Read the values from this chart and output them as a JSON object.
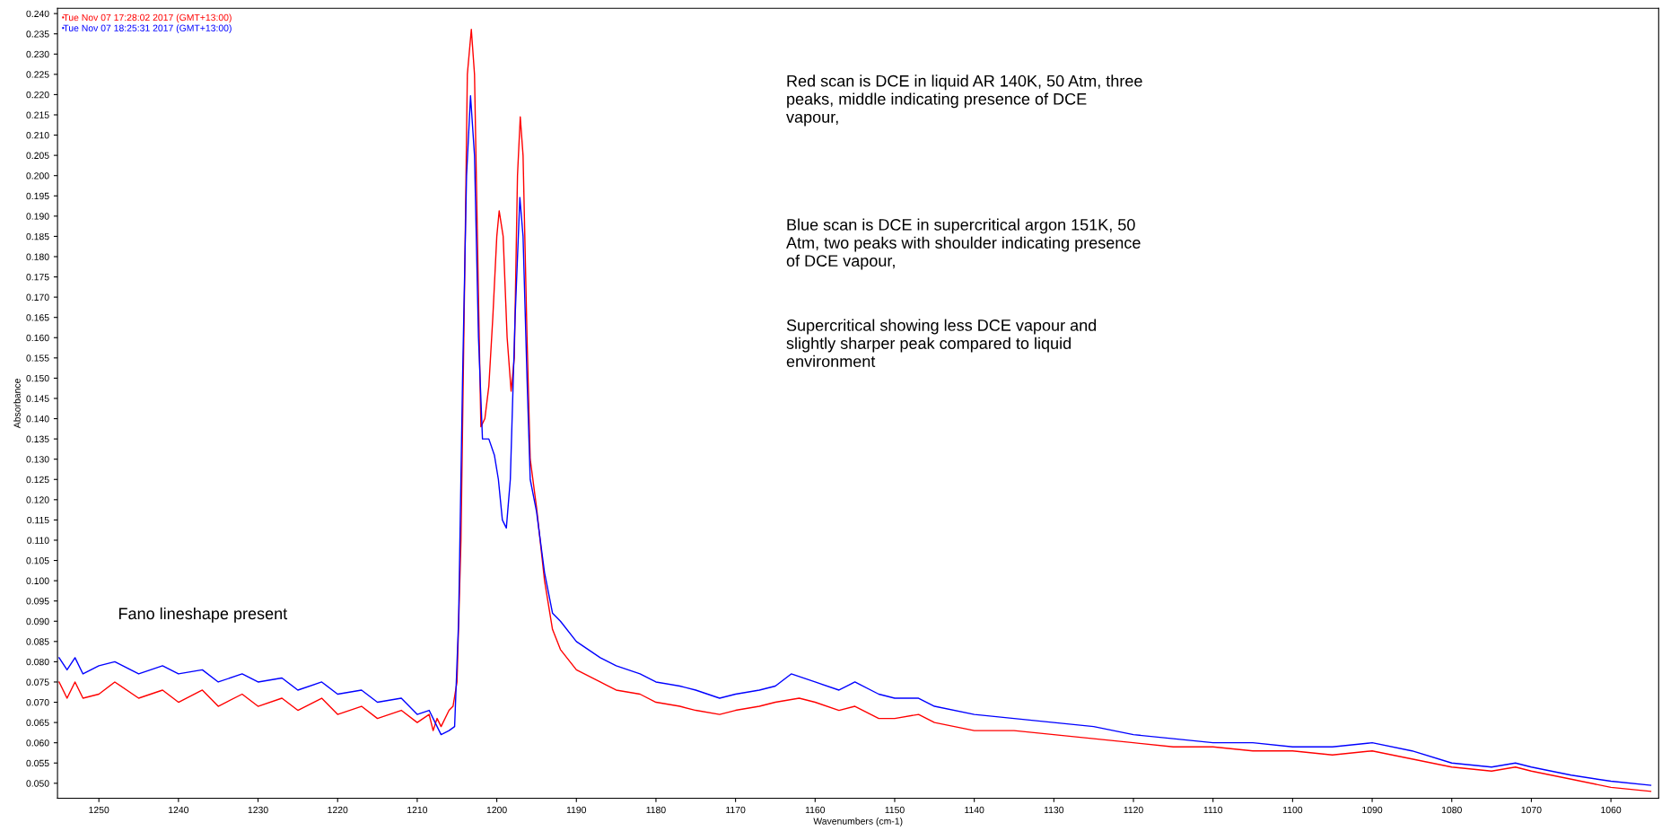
{
  "chart_data": {
    "type": "line",
    "xlabel": "Wavenumbers (cm-1)",
    "ylabel": "Absorbance",
    "xlim": [
      1255.2,
      1054
    ],
    "ylim": [
      0.0463,
      0.2413
    ],
    "xticks": [
      1250,
      1240,
      1230,
      1220,
      1210,
      1200,
      1190,
      1180,
      1170,
      1160,
      1150,
      1140,
      1130,
      1120,
      1110,
      1100,
      1090,
      1080,
      1070,
      1060
    ],
    "yticks": [
      {
        "value": 0.05,
        "label": "0.050"
      },
      {
        "value": 0.055,
        "label": "0.055"
      },
      {
        "value": 0.06,
        "label": "0.060"
      },
      {
        "value": 0.065,
        "label": "0.065"
      },
      {
        "value": 0.07,
        "label": "0.070"
      },
      {
        "value": 0.075,
        "label": "0.075"
      },
      {
        "value": 0.08,
        "label": "0.080"
      },
      {
        "value": 0.085,
        "label": "0.085"
      },
      {
        "value": 0.09,
        "label": "0.090"
      },
      {
        "value": 0.095,
        "label": "0.095"
      },
      {
        "value": 0.1,
        "label": "0.100"
      },
      {
        "value": 0.105,
        "label": "0.105"
      },
      {
        "value": 0.11,
        "label": "0.110"
      },
      {
        "value": 0.115,
        "label": "0.115"
      },
      {
        "value": 0.12,
        "label": "0.120"
      },
      {
        "value": 0.125,
        "label": "0.125"
      },
      {
        "value": 0.13,
        "label": "0.130"
      },
      {
        "value": 0.135,
        "label": "0.135"
      },
      {
        "value": 0.14,
        "label": "0.140"
      },
      {
        "value": 0.145,
        "label": "0.145"
      },
      {
        "value": 0.15,
        "label": "0.150"
      },
      {
        "value": 0.155,
        "label": "0.155"
      },
      {
        "value": 0.16,
        "label": "0.160"
      },
      {
        "value": 0.165,
        "label": "0.165"
      },
      {
        "value": 0.17,
        "label": "0.170"
      },
      {
        "value": 0.175,
        "label": "0.175"
      },
      {
        "value": 0.18,
        "label": "0.180"
      },
      {
        "value": 0.185,
        "label": "0.185"
      },
      {
        "value": 0.19,
        "label": "0.190"
      },
      {
        "value": 0.195,
        "label": "0.195"
      },
      {
        "value": 0.2,
        "label": "0.200"
      },
      {
        "value": 0.205,
        "label": "0.205"
      },
      {
        "value": 0.21,
        "label": "0.210"
      },
      {
        "value": 0.215,
        "label": "0.215"
      },
      {
        "value": 0.22,
        "label": "0.220"
      },
      {
        "value": 0.225,
        "label": "0.225"
      },
      {
        "value": 0.23,
        "label": "0.230"
      },
      {
        "value": 0.235,
        "label": "0.235"
      },
      {
        "value": 0.24,
        "label": "0.240"
      }
    ],
    "grid": false,
    "legend": "top left",
    "marker": "none",
    "line_style": "solid",
    "series": [
      {
        "name": "Tue Nov 07 17:28:02 2017 (GMT+13:00)",
        "color": "#ff0000",
        "x": [
          1255,
          1254,
          1253,
          1252,
          1250,
          1248,
          1245,
          1242,
          1240,
          1237,
          1235,
          1232,
          1230,
          1227,
          1225,
          1222,
          1220,
          1217,
          1215,
          1212,
          1210,
          1208.5,
          1208,
          1207.5,
          1207,
          1206,
          1205.5,
          1205,
          1204.5,
          1204,
          1203.7,
          1203.2,
          1202.8,
          1202.3,
          1202,
          1201.5,
          1201,
          1200.5,
          1200,
          1199.7,
          1199.2,
          1198.7,
          1198.2,
          1197.8,
          1197.4,
          1197.05,
          1196.7,
          1196.2,
          1195.8,
          1195,
          1194,
          1193,
          1192,
          1190,
          1187,
          1185,
          1182,
          1180,
          1177,
          1175,
          1172,
          1170,
          1167,
          1165,
          1162,
          1160,
          1157,
          1155,
          1152,
          1150,
          1147,
          1145,
          1140,
          1135,
          1130,
          1125,
          1120,
          1115,
          1110,
          1105,
          1100,
          1095,
          1090,
          1085,
          1080,
          1075,
          1072,
          1070,
          1065,
          1060,
          1055
        ],
        "values": [
          0.075,
          0.071,
          0.075,
          0.071,
          0.072,
          0.075,
          0.071,
          0.073,
          0.07,
          0.073,
          0.069,
          0.072,
          0.069,
          0.071,
          0.068,
          0.071,
          0.067,
          0.069,
          0.066,
          0.068,
          0.065,
          0.067,
          0.063,
          0.066,
          0.064,
          0.068,
          0.069,
          0.075,
          0.11,
          0.18,
          0.225,
          0.2361,
          0.225,
          0.17,
          0.138,
          0.14,
          0.148,
          0.165,
          0.185,
          0.1913,
          0.185,
          0.16,
          0.1468,
          0.155,
          0.2,
          0.2145,
          0.205,
          0.16,
          0.13,
          0.118,
          0.1,
          0.088,
          0.083,
          0.078,
          0.075,
          0.073,
          0.072,
          0.07,
          0.069,
          0.068,
          0.067,
          0.068,
          0.069,
          0.07,
          0.071,
          0.07,
          0.068,
          0.069,
          0.066,
          0.066,
          0.067,
          0.065,
          0.063,
          0.063,
          0.062,
          0.061,
          0.06,
          0.059,
          0.059,
          0.058,
          0.058,
          0.057,
          0.058,
          0.056,
          0.054,
          0.053,
          0.054,
          0.053,
          0.051,
          0.049,
          0.048
        ]
      },
      {
        "name": "Tue Nov 07 18:25:31 2017 (GMT+13:00)",
        "color": "#0000ff",
        "x": [
          1255,
          1254,
          1253,
          1252,
          1250,
          1248,
          1245,
          1242,
          1240,
          1237,
          1235,
          1232,
          1230,
          1227,
          1225,
          1222,
          1220,
          1217,
          1215,
          1212,
          1210,
          1208.5,
          1208,
          1207,
          1206,
          1205.3,
          1204.8,
          1204.3,
          1203.8,
          1203.3,
          1202.8,
          1202.3,
          1201.8,
          1201,
          1200.3,
          1199.8,
          1199.3,
          1198.8,
          1198.3,
          1197.7,
          1197.1,
          1196.7,
          1196.2,
          1195.8,
          1195,
          1194,
          1193,
          1192,
          1190,
          1187,
          1185,
          1182,
          1180,
          1177,
          1175,
          1172,
          1170,
          1167,
          1165,
          1163,
          1160,
          1157,
          1155,
          1152,
          1150,
          1147,
          1145,
          1140,
          1135,
          1130,
          1125,
          1120,
          1115,
          1110,
          1105,
          1100,
          1095,
          1090,
          1085,
          1080,
          1075,
          1072,
          1070,
          1065,
          1060,
          1055
        ],
        "values": [
          0.081,
          0.078,
          0.081,
          0.077,
          0.079,
          0.08,
          0.077,
          0.079,
          0.077,
          0.078,
          0.075,
          0.077,
          0.075,
          0.076,
          0.073,
          0.075,
          0.072,
          0.073,
          0.07,
          0.071,
          0.067,
          0.068,
          0.066,
          0.062,
          0.063,
          0.064,
          0.09,
          0.15,
          0.2,
          0.2197,
          0.205,
          0.16,
          0.135,
          0.135,
          0.131,
          0.125,
          0.115,
          0.113,
          0.125,
          0.165,
          0.1946,
          0.185,
          0.15,
          0.125,
          0.117,
          0.102,
          0.092,
          0.09,
          0.085,
          0.081,
          0.079,
          0.077,
          0.075,
          0.074,
          0.073,
          0.071,
          0.072,
          0.073,
          0.074,
          0.077,
          0.075,
          0.073,
          0.075,
          0.072,
          0.071,
          0.071,
          0.069,
          0.067,
          0.066,
          0.065,
          0.064,
          0.062,
          0.061,
          0.06,
          0.06,
          0.059,
          0.059,
          0.06,
          0.058,
          0.055,
          0.054,
          0.055,
          0.054,
          0.052,
          0.0505,
          0.0495
        ]
      }
    ],
    "annotations": [
      "Red scan is DCE in liquid AR 140K, 50 Atm, three\npeaks, middle indicating presence of DCE\nvapour,",
      "Blue scan is DCE in supercritical argon 151K, 50\nAtm, two peaks with shoulder indicating presence\nof DCE vapour,",
      "Supercritical showing less DCE vapour and\nslightly sharper peak compared to liquid\nenvironment",
      "Fano lineshape present"
    ]
  }
}
